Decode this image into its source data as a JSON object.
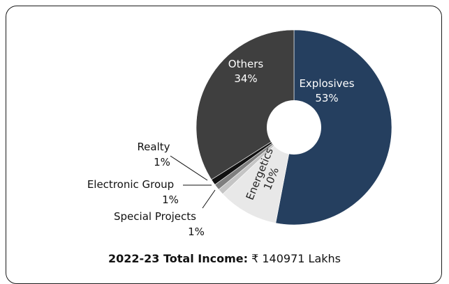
{
  "chart_data": {
    "type": "pie",
    "donut": true,
    "categories": [
      "Explosives",
      "Energetics",
      "Special Projects",
      "Electronic Group",
      "Realty",
      "Others"
    ],
    "values": [
      53,
      10,
      1,
      1,
      1,
      34
    ],
    "value_labels": [
      "53%",
      "10%",
      "1%",
      "1%",
      "1%",
      "34%"
    ],
    "colors": [
      "#253f5f",
      "#e8e8e8",
      "#c4c4c4",
      "#7f7f7f",
      "#111111",
      "#3f3f3f"
    ],
    "legend": "none"
  },
  "footer": {
    "bold": "2022-23 Total Income:",
    "rest": " ₹ 140971 Lakhs"
  }
}
